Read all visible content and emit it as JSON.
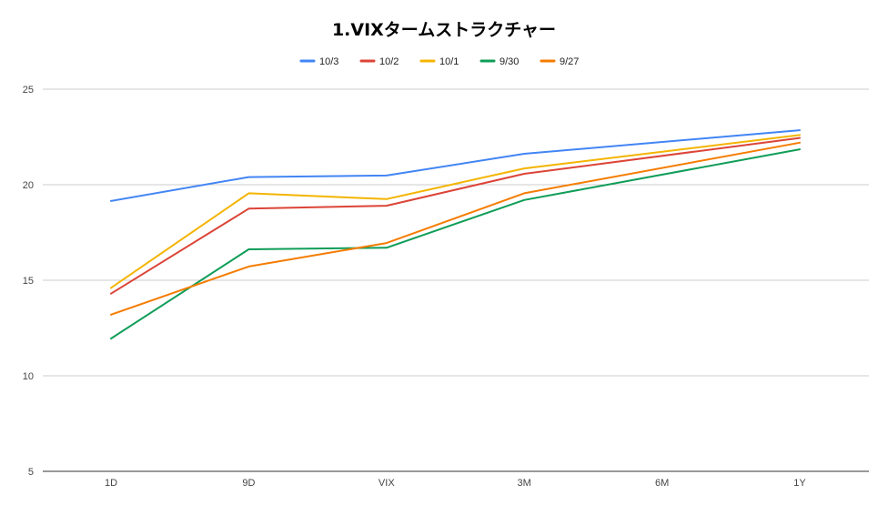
{
  "chart_data": {
    "type": "line",
    "title": "1.VIXタームストラクチャー",
    "xlabel": "",
    "ylabel": "",
    "categories": [
      "1D",
      "9D",
      "VIX",
      "3M",
      "6M",
      "1Y"
    ],
    "ylim": [
      5,
      25
    ],
    "yticks": [
      5,
      10,
      15,
      20,
      25
    ],
    "grid": true,
    "legend_position": "top-center",
    "series": [
      {
        "name": "10/3",
        "color": "#4285f4",
        "values": [
          19.15,
          20.4,
          20.48,
          21.62,
          null,
          22.85
        ]
      },
      {
        "name": "10/2",
        "color": "#db4437",
        "values": [
          14.3,
          18.75,
          18.9,
          20.57,
          null,
          22.45
        ]
      },
      {
        "name": "10/1",
        "color": "#f4b400",
        "values": [
          14.6,
          19.55,
          19.25,
          20.85,
          null,
          22.6
        ]
      },
      {
        "name": "9/30",
        "color": "#0f9d58",
        "values": [
          11.95,
          16.62,
          16.7,
          19.2,
          null,
          21.85
        ]
      },
      {
        "name": "9/27",
        "color": "#f57c00",
        "values": [
          13.2,
          15.72,
          16.95,
          19.55,
          null,
          22.2
        ]
      }
    ]
  }
}
